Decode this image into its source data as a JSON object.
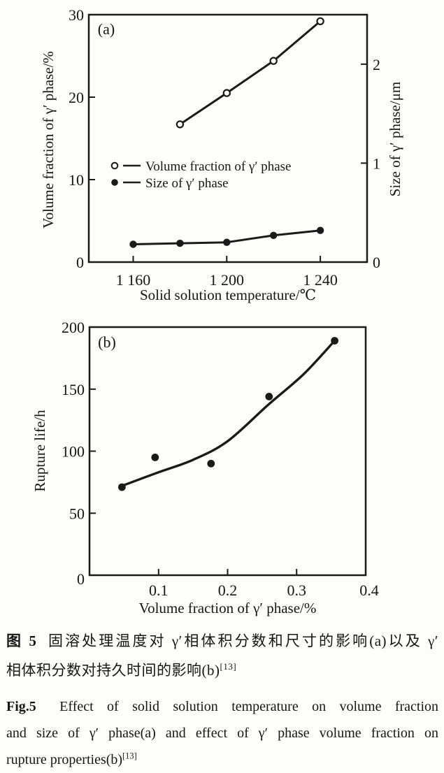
{
  "figure": {
    "caption_zh": {
      "label": "图 5",
      "line1": "固溶处理温度对 γ′相体积分数和尺寸的影响(a)以及 γ′",
      "line2": "相体积分数对持久时间的影响(b)",
      "ref_sup": "[13]"
    },
    "caption_en": {
      "label": "Fig.5",
      "line1": "Effect of solid solution temperature on volume fraction",
      "line2": "and size of γ′ phase(a) and effect of γ′ phase volume fraction on",
      "line3": "rupture properties(b)",
      "ref_sup": "[13]"
    }
  },
  "ink_color": "#1a1a1a",
  "chart_data": [
    {
      "type": "line",
      "panel_label": "(a)",
      "xlabel": "Solid solution temperature/℃",
      "ylabel_left": "Volume fraction of γ′ phase/%",
      "ylabel_right": "Size of γ′ phase/μm",
      "xlim": [
        1141,
        1260
      ],
      "ylim_left": [
        0,
        30
      ],
      "ylim_right": [
        0,
        2.5
      ],
      "xticks": [
        {
          "v": 1160,
          "label": "1 160"
        },
        {
          "v": 1200,
          "label": "1 200"
        },
        {
          "v": 1240,
          "label": "1 240"
        }
      ],
      "yticks_left": [
        {
          "v": 0,
          "label": "0"
        },
        {
          "v": 10,
          "label": "10"
        },
        {
          "v": 20,
          "label": "20"
        },
        {
          "v": 30,
          "label": "30"
        }
      ],
      "yticks_right": [
        {
          "v": 0,
          "label": "0"
        },
        {
          "v": 1,
          "label": "1"
        },
        {
          "v": 2,
          "label": "2"
        }
      ],
      "grid": false,
      "legend_position": "inside-middle-left",
      "series": [
        {
          "name": "Volume fraction of γ′ phase",
          "axis": "left",
          "marker": "open-circle",
          "x": [
            1180,
            1200,
            1220,
            1240
          ],
          "y": [
            16.7,
            20.5,
            24.4,
            29.2
          ]
        },
        {
          "name": "Size of γ′ phase",
          "axis": "right",
          "marker": "filled-circle",
          "x": [
            1160,
            1180,
            1200,
            1220,
            1240
          ],
          "y": [
            0.18,
            0.19,
            0.2,
            0.27,
            0.32
          ]
        }
      ]
    },
    {
      "type": "scatter",
      "panel_label": "(b)",
      "xlabel": "Volume fraction of  γ′ phase/%",
      "ylabel": "Rupture life/h",
      "xlim": [
        0,
        0.4
      ],
      "ylim": [
        0,
        200
      ],
      "xticks": [
        {
          "v": 0.1,
          "label": "0.1"
        },
        {
          "v": 0.2,
          "label": "0.2"
        },
        {
          "v": 0.3,
          "label": "0.3"
        },
        {
          "v": 0.4,
          "label": "0.4"
        }
      ],
      "yticks": [
        {
          "v": 0,
          "label": "0"
        },
        {
          "v": 50,
          "label": "50"
        },
        {
          "v": 100,
          "label": "100"
        },
        {
          "v": 150,
          "label": "150"
        },
        {
          "v": 200,
          "label": "200"
        }
      ],
      "grid": false,
      "points": {
        "x": [
          0.047,
          0.095,
          0.176,
          0.26,
          0.355
        ],
        "y": [
          71,
          95,
          90,
          144,
          189
        ]
      },
      "trend_curve": {
        "x": [
          0.047,
          0.1,
          0.15,
          0.2,
          0.26,
          0.31,
          0.355
        ],
        "y": [
          72,
          83,
          93,
          108,
          138,
          162,
          189
        ]
      }
    }
  ]
}
